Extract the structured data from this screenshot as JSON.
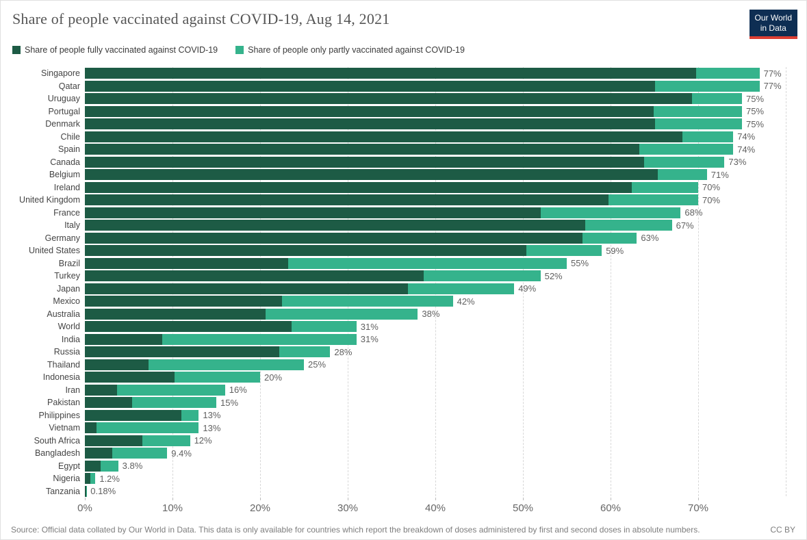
{
  "header": {
    "logo_line1": "Our World",
    "logo_line2": "in Data"
  },
  "chart_data": {
    "type": "bar",
    "stacked": true,
    "orientation": "horizontal",
    "title": "Share of people vaccinated against COVID-19, Aug 14, 2021",
    "categories": [
      "Singapore",
      "Qatar",
      "Uruguay",
      "Portugal",
      "Denmark",
      "Chile",
      "Spain",
      "Canada",
      "Belgium",
      "Ireland",
      "United Kingdom",
      "France",
      "Italy",
      "Germany",
      "United States",
      "Brazil",
      "Turkey",
      "Japan",
      "Mexico",
      "Australia",
      "World",
      "India",
      "Russia",
      "Thailand",
      "Indonesia",
      "Iran",
      "Pakistan",
      "Philippines",
      "Vietnam",
      "South Africa",
      "Bangladesh",
      "Egypt",
      "Nigeria",
      "Tanzania"
    ],
    "series": [
      {
        "name": "Share of people fully vaccinated against COVID-19",
        "color": "#1d5b45",
        "values": [
          69.8,
          65.1,
          69.3,
          64.9,
          65.1,
          68.2,
          63.3,
          63.8,
          65.4,
          62.4,
          59.8,
          52.0,
          57.1,
          56.8,
          50.4,
          23.2,
          38.7,
          36.9,
          22.5,
          20.6,
          23.6,
          8.8,
          22.2,
          7.3,
          10.2,
          3.7,
          5.4,
          11.0,
          1.3,
          6.6,
          3.1,
          1.8,
          0.6,
          0.15
        ]
      },
      {
        "name": "Share of people only partly vaccinated against COVID-19",
        "color": "#35b38c",
        "values": [
          7.2,
          11.9,
          5.7,
          10.1,
          9.9,
          5.8,
          10.7,
          9.2,
          5.6,
          7.6,
          10.2,
          16.0,
          9.9,
          6.2,
          8.6,
          31.8,
          13.3,
          12.1,
          19.5,
          17.4,
          7.4,
          22.2,
          5.8,
          17.7,
          9.8,
          12.3,
          9.6,
          2.0,
          11.7,
          5.4,
          6.3,
          2.0,
          0.6,
          0.03
        ]
      }
    ],
    "bar_labels": [
      "77%",
      "77%",
      "75%",
      "75%",
      "75%",
      "74%",
      "74%",
      "73%",
      "71%",
      "70%",
      "70%",
      "68%",
      "67%",
      "63%",
      "59%",
      "55%",
      "52%",
      "49%",
      "42%",
      "38%",
      "31%",
      "31%",
      "28%",
      "25%",
      "20%",
      "16%",
      "15%",
      "13%",
      "13%",
      "12%",
      "9.4%",
      "3.8%",
      "1.2%",
      "0.18%"
    ],
    "x_ticks": [
      "0%",
      "10%",
      "20%",
      "30%",
      "40%",
      "50%",
      "60%",
      "70%"
    ],
    "xlim": [
      0,
      81
    ],
    "grid": true,
    "legend_position": "top"
  },
  "footer": {
    "source": "Source: Official data collated by Our World in Data. This data is only available for countries which report the breakdown of doses administered by first and second doses in absolute numbers.",
    "license": "CC BY"
  },
  "colors": {
    "fully": "#1d5b45",
    "partly": "#35b38c",
    "logo_bg": "#0e2e53",
    "logo_red": "#dc3e32",
    "gridline": "#d8d8d8"
  }
}
